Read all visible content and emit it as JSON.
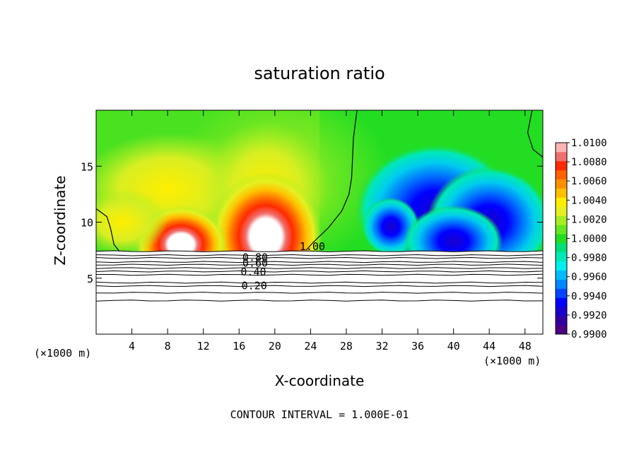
{
  "chart_data": {
    "type": "heatmap",
    "title": "saturation ratio",
    "xlabel": "X-coordinate",
    "ylabel": "Z-coordinate",
    "x_unit_left": "(×1000 m)",
    "x_unit_right": "(×1000 m)",
    "xlim": [
      0,
      50
    ],
    "ylim": [
      0,
      20
    ],
    "x_ticks": [
      "4",
      "8",
      "12",
      "16",
      "20",
      "24",
      "28",
      "32",
      "36",
      "40",
      "44",
      "48"
    ],
    "x_tick_values": [
      4,
      8,
      12,
      16,
      20,
      24,
      28,
      32,
      36,
      40,
      44,
      48
    ],
    "y_ticks": [
      "5",
      "10",
      "15"
    ],
    "y_tick_values": [
      5,
      10,
      15
    ],
    "footer": "CONTOUR INTERVAL = 1.000E-01",
    "colorbar": {
      "labels": [
        "1.0100",
        "1.0080",
        "1.0060",
        "1.0040",
        "1.0020",
        "1.0000",
        "0.9980",
        "0.9960",
        "0.9940",
        "0.9920",
        "0.9900"
      ],
      "min": 0.99,
      "max": 1.01,
      "colors": [
        "#4b0082",
        "#3300a0",
        "#1a00cc",
        "#0000ff",
        "#0044ff",
        "#0088ff",
        "#00bbff",
        "#00eeee",
        "#00e8b8",
        "#00e07a",
        "#22dd22",
        "#66e622",
        "#a8ee22",
        "#e6f020",
        "#ffee00",
        "#ffc000",
        "#ff9000",
        "#ff6000",
        "#ff2a00",
        "#f07070",
        "#ffb4b4"
      ]
    },
    "contour_labels": [
      {
        "text": "1.00",
        "x": 24.2,
        "z": 7.9
      },
      {
        "text": "0.80",
        "x": 17.8,
        "z": 6.9
      },
      {
        "text": "0.60",
        "x": 17.8,
        "z": 6.4
      },
      {
        "text": "0.40",
        "x": 17.6,
        "z": 5.6
      },
      {
        "text": "0.20",
        "x": 17.7,
        "z": 4.4
      }
    ]
  }
}
